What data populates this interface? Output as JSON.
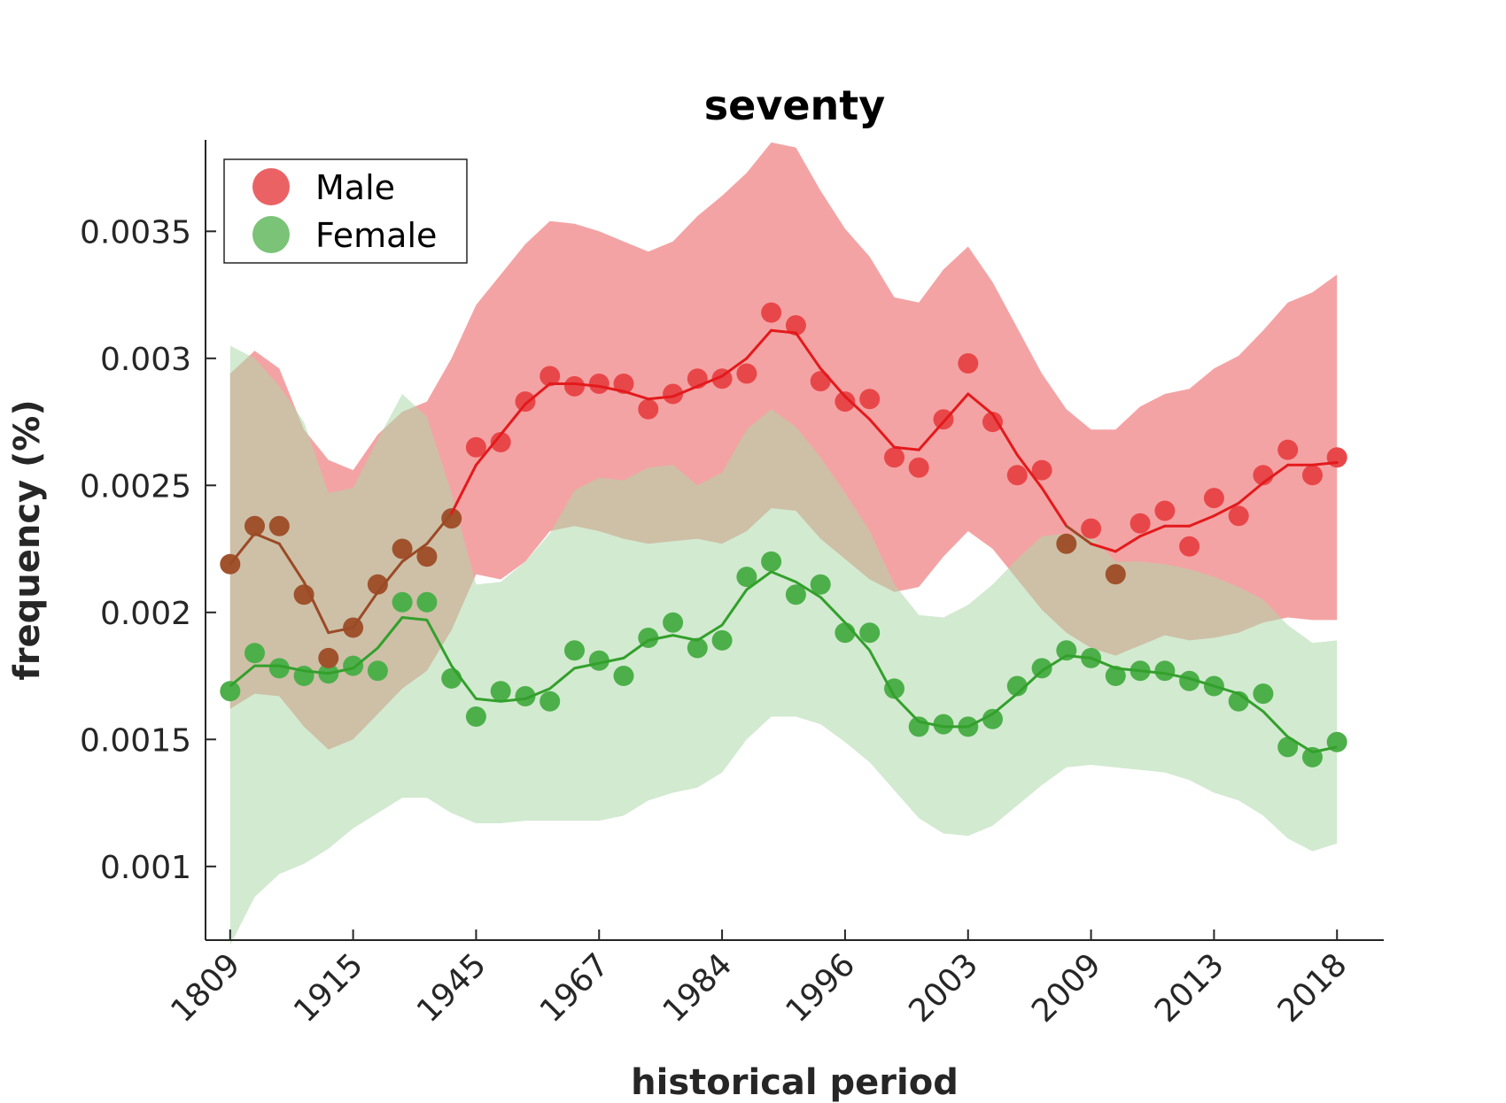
{
  "chart_data": {
    "type": "line",
    "title": "seventy",
    "xlabel": "historical period",
    "ylabel": "frequency (%)",
    "x_tick_labels": [
      "1809",
      "1915",
      "1945",
      "1967",
      "1984",
      "1996",
      "2003",
      "2009",
      "2013",
      "2018"
    ],
    "x_tick_positions": [
      0,
      5,
      10,
      15,
      20,
      25,
      30,
      35,
      40,
      45
    ],
    "xlim": [
      -1,
      46.9
    ],
    "y_ticks": [
      0.001,
      0.0015,
      0.002,
      0.0025,
      0.003,
      0.0035
    ],
    "y_tick_labels": [
      "0.001",
      "0.0015",
      "0.002",
      "0.0025",
      "0.003",
      "0.0035"
    ],
    "ylim": [
      0.00071,
      0.00386
    ],
    "legend": {
      "position": "top-left",
      "entries": [
        "Male",
        "Female"
      ]
    },
    "colors": {
      "male_point": "#e8474a",
      "male_line": "#e31a1c",
      "male_band": "#f4a3a4",
      "female_point": "#4daf4a",
      "female_line": "#33a02c",
      "female_band": "#add9a9",
      "overlap_point": "#a0522d",
      "overlap_line": "#9b4a26"
    },
    "series": [
      {
        "name": "Male",
        "x": [
          0,
          1,
          2,
          3,
          4,
          5,
          6,
          7,
          8,
          9,
          10,
          11,
          12,
          13,
          14,
          15,
          16,
          17,
          18,
          19,
          20,
          21,
          22,
          23,
          24,
          25,
          26,
          27,
          28,
          29,
          30,
          31,
          32,
          33,
          34,
          35,
          36,
          37,
          38,
          39,
          40,
          41,
          42,
          43,
          44,
          45
        ],
        "points": [
          0.00219,
          0.00234,
          0.00234,
          0.00207,
          0.00182,
          0.00194,
          0.00211,
          0.00225,
          0.00222,
          0.00237,
          0.00265,
          0.00267,
          0.00283,
          0.00293,
          0.00289,
          0.0029,
          0.0029,
          0.0028,
          0.00286,
          0.00292,
          0.00292,
          0.00294,
          0.00318,
          0.00313,
          0.00291,
          0.00283,
          0.00284,
          0.00261,
          0.00257,
          0.00276,
          0.00298,
          0.00275,
          0.00254,
          0.00256,
          0.00227,
          0.00233,
          0.00215,
          0.00235,
          0.0024,
          0.00226,
          0.00245,
          0.00238,
          0.00254,
          0.00264,
          0.00254,
          0.00261
        ],
        "smoothed": [
          0.00219,
          0.00231,
          0.00227,
          0.00212,
          0.00192,
          0.00194,
          0.00208,
          0.0022,
          0.00227,
          0.00239,
          0.00258,
          0.0027,
          0.00282,
          0.0029,
          0.0029,
          0.00289,
          0.00287,
          0.00284,
          0.00285,
          0.00289,
          0.00293,
          0.003,
          0.00311,
          0.0031,
          0.00296,
          0.00285,
          0.00276,
          0.00265,
          0.00264,
          0.00275,
          0.00286,
          0.00278,
          0.00262,
          0.00249,
          0.00234,
          0.00227,
          0.00224,
          0.0023,
          0.00234,
          0.00234,
          0.00238,
          0.00243,
          0.00251,
          0.00258,
          0.00258,
          0.00259
        ],
        "band_upper": [
          0.00294,
          0.00303,
          0.00296,
          0.00272,
          0.0026,
          0.00256,
          0.0027,
          0.00279,
          0.00283,
          0.003,
          0.00321,
          0.00333,
          0.00345,
          0.00354,
          0.00353,
          0.0035,
          0.00346,
          0.00342,
          0.00346,
          0.00356,
          0.00364,
          0.00373,
          0.00385,
          0.00383,
          0.00366,
          0.00351,
          0.0034,
          0.00324,
          0.00322,
          0.00335,
          0.00344,
          0.0033,
          0.00312,
          0.00294,
          0.0028,
          0.00272,
          0.00272,
          0.00281,
          0.00286,
          0.00288,
          0.00296,
          0.00301,
          0.00311,
          0.00322,
          0.00326,
          0.00333
        ],
        "band_lower": [
          0.00162,
          0.00168,
          0.00167,
          0.00155,
          0.00146,
          0.0015,
          0.0016,
          0.0017,
          0.00177,
          0.00193,
          0.00215,
          0.00213,
          0.0022,
          0.00232,
          0.00234,
          0.00232,
          0.00229,
          0.00227,
          0.00228,
          0.00229,
          0.00227,
          0.00232,
          0.00241,
          0.0024,
          0.00229,
          0.00221,
          0.00213,
          0.00208,
          0.0021,
          0.00222,
          0.00232,
          0.00225,
          0.00213,
          0.00201,
          0.00192,
          0.00186,
          0.00183,
          0.00187,
          0.00191,
          0.00189,
          0.0019,
          0.00192,
          0.00196,
          0.00198,
          0.00197,
          0.00197
        ]
      },
      {
        "name": "Female",
        "x": [
          0,
          1,
          2,
          3,
          4,
          5,
          6,
          7,
          8,
          9,
          10,
          11,
          12,
          13,
          14,
          15,
          16,
          17,
          18,
          19,
          20,
          21,
          22,
          23,
          24,
          25,
          26,
          27,
          28,
          29,
          30,
          31,
          32,
          33,
          34,
          35,
          36,
          37,
          38,
          39,
          40,
          41,
          42,
          43,
          44,
          45
        ],
        "points": [
          0.00169,
          0.00184,
          0.00178,
          0.00175,
          0.00176,
          0.00179,
          0.00177,
          0.00204,
          0.00204,
          0.00174,
          0.00159,
          0.00169,
          0.00167,
          0.00165,
          0.00185,
          0.00181,
          0.00175,
          0.0019,
          0.00196,
          0.00186,
          0.00189,
          0.00214,
          0.0022,
          0.00207,
          0.00211,
          0.00192,
          0.00192,
          0.0017,
          0.00155,
          0.00156,
          0.00155,
          0.00158,
          0.00171,
          0.00178,
          0.00185,
          0.00182,
          0.00175,
          0.00177,
          0.00177,
          0.00173,
          0.00171,
          0.00165,
          0.00168,
          0.00147,
          0.00143,
          0.00149
        ],
        "smoothed": [
          0.00171,
          0.00179,
          0.00179,
          0.00177,
          0.00176,
          0.00178,
          0.00186,
          0.00198,
          0.00197,
          0.00179,
          0.00166,
          0.00165,
          0.00166,
          0.0017,
          0.00178,
          0.0018,
          0.00182,
          0.00189,
          0.00191,
          0.00189,
          0.00195,
          0.00209,
          0.00216,
          0.00212,
          0.00206,
          0.00196,
          0.00185,
          0.00167,
          0.00157,
          0.00155,
          0.00155,
          0.0016,
          0.00168,
          0.00177,
          0.00183,
          0.00182,
          0.00178,
          0.00177,
          0.00176,
          0.00174,
          0.00171,
          0.00168,
          0.00161,
          0.00151,
          0.00145,
          0.00147
        ],
        "band_upper": [
          0.00305,
          0.003,
          0.00289,
          0.00275,
          0.00247,
          0.00249,
          0.00268,
          0.00286,
          0.00277,
          0.00247,
          0.00211,
          0.00212,
          0.0022,
          0.00231,
          0.00248,
          0.00253,
          0.00252,
          0.00257,
          0.00258,
          0.0025,
          0.00255,
          0.00272,
          0.0028,
          0.00273,
          0.00261,
          0.00247,
          0.00232,
          0.00211,
          0.00199,
          0.00198,
          0.00203,
          0.00211,
          0.00221,
          0.0023,
          0.00231,
          0.0023,
          0.0022,
          0.0022,
          0.00219,
          0.00217,
          0.00214,
          0.0021,
          0.00205,
          0.00195,
          0.00188,
          0.00189
        ],
        "band_lower": [
          0.00069,
          0.00088,
          0.00097,
          0.00101,
          0.00107,
          0.00115,
          0.00121,
          0.00127,
          0.00127,
          0.00121,
          0.00117,
          0.00117,
          0.00118,
          0.00118,
          0.00118,
          0.00118,
          0.0012,
          0.00126,
          0.00129,
          0.00131,
          0.00137,
          0.0015,
          0.00159,
          0.00159,
          0.00156,
          0.00149,
          0.00141,
          0.0013,
          0.00119,
          0.00113,
          0.00112,
          0.00116,
          0.00124,
          0.00132,
          0.00139,
          0.0014,
          0.00139,
          0.00138,
          0.00137,
          0.00134,
          0.00129,
          0.00126,
          0.0012,
          0.00111,
          0.00106,
          0.00109
        ]
      }
    ]
  }
}
